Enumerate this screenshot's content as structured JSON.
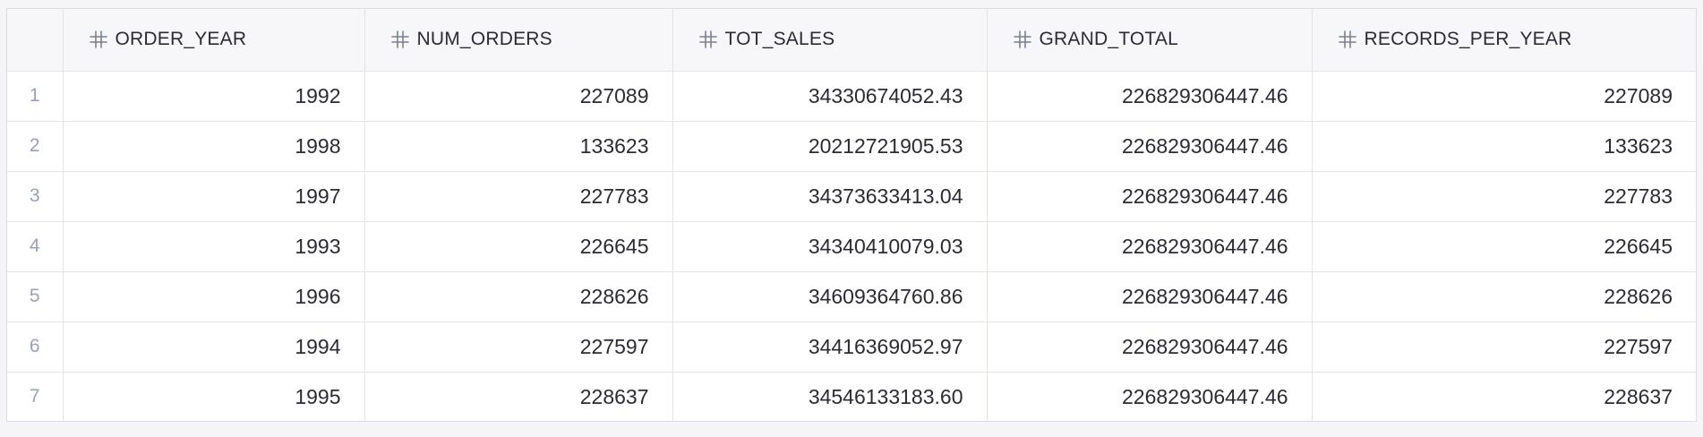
{
  "table": {
    "columns": [
      {
        "label": "ORDER_YEAR",
        "icon": "hash-icon"
      },
      {
        "label": "NUM_ORDERS",
        "icon": "hash-icon"
      },
      {
        "label": "TOT_SALES",
        "icon": "hash-icon"
      },
      {
        "label": "GRAND_TOTAL",
        "icon": "hash-icon"
      },
      {
        "label": "RECORDS_PER_YEAR",
        "icon": "hash-icon"
      }
    ],
    "rows": [
      {
        "index": "1",
        "cells": [
          "1992",
          "227089",
          "34330674052.43",
          "226829306447.46",
          "227089"
        ]
      },
      {
        "index": "2",
        "cells": [
          "1998",
          "133623",
          "20212721905.53",
          "226829306447.46",
          "133623"
        ]
      },
      {
        "index": "3",
        "cells": [
          "1997",
          "227783",
          "34373633413.04",
          "226829306447.46",
          "227783"
        ]
      },
      {
        "index": "4",
        "cells": [
          "1993",
          "226645",
          "34340410079.03",
          "226829306447.46",
          "226645"
        ]
      },
      {
        "index": "5",
        "cells": [
          "1996",
          "228626",
          "34609364760.86",
          "226829306447.46",
          "228626"
        ]
      },
      {
        "index": "6",
        "cells": [
          "1994",
          "227597",
          "34416369052.97",
          "226829306447.46",
          "227597"
        ]
      },
      {
        "index": "7",
        "cells": [
          "1995",
          "228637",
          "34546133183.60",
          "226829306447.46",
          "228637"
        ]
      }
    ]
  },
  "colors": {
    "header_bg": "#f7f7fa",
    "border": "#e3e3ea",
    "text": "#2b2b33",
    "row_index": "#9aa0b8",
    "icon": "#7a7f92"
  }
}
